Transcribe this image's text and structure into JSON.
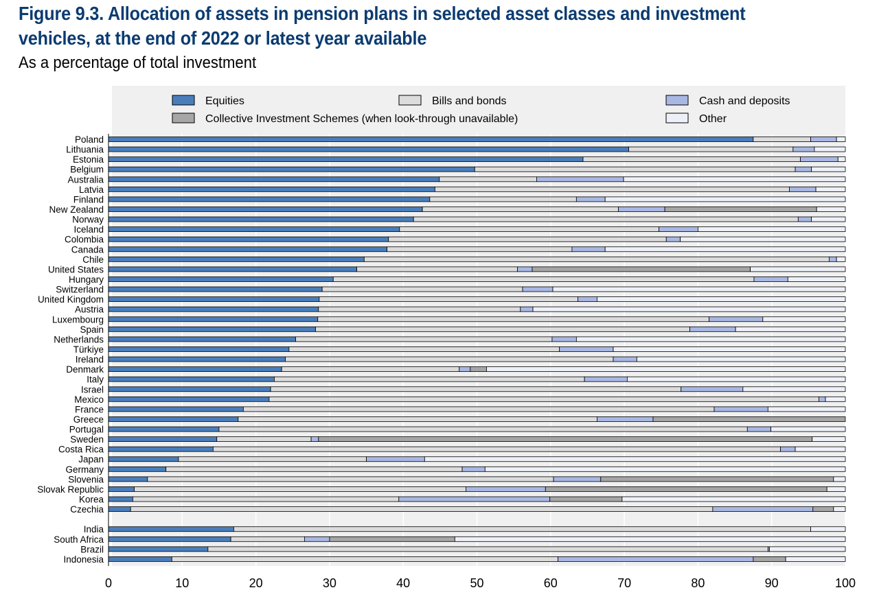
{
  "title": "Figure 9.3. Allocation of assets in pension plans in selected asset classes and investment vehicles, at the end of 2022 or latest year available",
  "subtitle": "As a percentage of total investment",
  "colors": {
    "equities": "#4a7ebb",
    "bills_bonds": "#dcdcdc",
    "cash": "#a9b8e3",
    "cis": "#a6a6a6",
    "other": "#eef0f7",
    "title": "#0b3b70",
    "plot_bg": "#f0f0f0"
  },
  "chart_data": {
    "type": "bar",
    "orientation": "horizontal",
    "stacked": true,
    "xlim": [
      0,
      100
    ],
    "xticks": [
      0,
      10,
      20,
      30,
      40,
      50,
      60,
      70,
      80,
      90,
      100
    ],
    "grid": true,
    "legend_position": "top",
    "series": [
      {
        "key": "equities",
        "name": "Equities"
      },
      {
        "key": "bills",
        "name": "Bills and bonds"
      },
      {
        "key": "cash",
        "name": "Cash and deposits"
      },
      {
        "key": "cis",
        "name": "Collective Investment Schemes (when look-through unavailable)"
      },
      {
        "key": "other",
        "name": "Other"
      }
    ],
    "groups": [
      {
        "rows": [
          {
            "label": "Poland",
            "values": [
              87.5,
              7.8,
              3.5,
              0,
              1.2
            ]
          },
          {
            "label": "Lithuania",
            "values": [
              70.6,
              22.3,
              2.9,
              0,
              4.2
            ]
          },
          {
            "label": "Estonia",
            "values": [
              64.4,
              29.5,
              5.1,
              0,
              1.0
            ]
          },
          {
            "label": "Belgium",
            "values": [
              49.7,
              43.5,
              2.2,
              0,
              4.6
            ]
          },
          {
            "label": "Australia",
            "values": [
              44.9,
              13.2,
              11.8,
              0,
              30.1
            ]
          },
          {
            "label": "Latvia",
            "values": [
              44.3,
              48.1,
              3.6,
              0,
              4.0
            ]
          },
          {
            "label": "Finland",
            "values": [
              43.6,
              19.9,
              3.9,
              0,
              32.6
            ]
          },
          {
            "label": "New Zealand",
            "values": [
              42.6,
              26.6,
              6.3,
              20.6,
              3.9
            ]
          },
          {
            "label": "Norway",
            "values": [
              41.4,
              52.2,
              1.8,
              0,
              4.6
            ]
          },
          {
            "label": "Iceland",
            "values": [
              39.5,
              35.2,
              5.3,
              0,
              20.0
            ]
          },
          {
            "label": "Colombia",
            "values": [
              38.0,
              37.7,
              1.9,
              0,
              22.4
            ]
          },
          {
            "label": "Canada",
            "values": [
              37.8,
              25.1,
              4.5,
              0,
              32.6
            ]
          },
          {
            "label": "Chile",
            "values": [
              34.7,
              63.1,
              1.0,
              0,
              1.2
            ]
          },
          {
            "label": "United States",
            "values": [
              33.7,
              21.8,
              2.0,
              29.6,
              12.9
            ]
          },
          {
            "label": "Hungary",
            "values": [
              30.5,
              57.1,
              4.6,
              0,
              7.8
            ]
          },
          {
            "label": "Switzerland",
            "values": [
              29.0,
              27.2,
              4.1,
              0,
              39.7
            ]
          },
          {
            "label": "United Kingdom",
            "values": [
              28.6,
              35.1,
              2.6,
              0,
              33.7
            ]
          },
          {
            "label": "Austria",
            "values": [
              28.5,
              27.4,
              1.7,
              0,
              42.4
            ]
          },
          {
            "label": "Luxembourg",
            "values": [
              28.4,
              53.1,
              7.3,
              0,
              11.2
            ]
          },
          {
            "label": "Spain",
            "values": [
              28.1,
              50.8,
              6.2,
              0,
              14.9
            ]
          },
          {
            "label": "Netherlands",
            "values": [
              25.4,
              34.8,
              3.3,
              0,
              36.5
            ]
          },
          {
            "label": "Türkiye",
            "values": [
              24.5,
              36.7,
              7.3,
              0,
              31.5
            ]
          },
          {
            "label": "Ireland",
            "values": [
              24.0,
              44.5,
              3.2,
              0,
              28.3
            ]
          },
          {
            "label": "Denmark",
            "values": [
              23.5,
              24.1,
              1.5,
              2.2,
              48.7
            ]
          },
          {
            "label": "Italy",
            "values": [
              22.5,
              42.1,
              5.8,
              0,
              29.6
            ]
          },
          {
            "label": "Israel",
            "values": [
              22.0,
              55.7,
              8.4,
              0,
              13.9
            ]
          },
          {
            "label": "Mexico",
            "values": [
              21.8,
              74.6,
              0.9,
              0,
              2.7
            ]
          },
          {
            "label": "France",
            "values": [
              18.3,
              63.9,
              7.3,
              0,
              10.5
            ]
          },
          {
            "label": "Greece",
            "values": [
              17.6,
              48.7,
              7.6,
              26.1,
              0
            ]
          },
          {
            "label": "Portugal",
            "values": [
              15.0,
              71.7,
              3.2,
              0,
              10.1
            ]
          },
          {
            "label": "Sweden",
            "values": [
              14.7,
              12.8,
              1.0,
              67.0,
              4.5
            ]
          },
          {
            "label": "Costa Rica",
            "values": [
              14.2,
              77.0,
              2.0,
              0,
              6.8
            ]
          },
          {
            "label": "Japan",
            "values": [
              9.5,
              25.5,
              7.9,
              0,
              57.1
            ]
          },
          {
            "label": "Germany",
            "values": [
              7.8,
              40.2,
              3.1,
              0,
              48.9
            ]
          },
          {
            "label": "Slovenia",
            "values": [
              5.3,
              55.1,
              6.4,
              31.6,
              1.6
            ]
          },
          {
            "label": "Slovak Republic",
            "values": [
              3.5,
              45.0,
              10.8,
              38.2,
              2.5
            ]
          },
          {
            "label": "Korea",
            "values": [
              3.3,
              36.1,
              20.5,
              9.8,
              30.3
            ]
          },
          {
            "label": "Czechia",
            "values": [
              3.0,
              79.0,
              13.6,
              2.8,
              1.6
            ]
          }
        ]
      },
      {
        "rows": [
          {
            "label": "India",
            "values": [
              17.0,
              78.3,
              0,
              0,
              4.7
            ]
          },
          {
            "label": "South Africa",
            "values": [
              16.6,
              10.0,
              3.4,
              17.0,
              53.0
            ]
          },
          {
            "label": "Brazil",
            "values": [
              13.5,
              76.0,
              0,
              0.2,
              10.3
            ]
          },
          {
            "label": "Indonesia",
            "values": [
              8.6,
              52.4,
              26.5,
              4.4,
              8.1
            ]
          }
        ]
      }
    ]
  }
}
